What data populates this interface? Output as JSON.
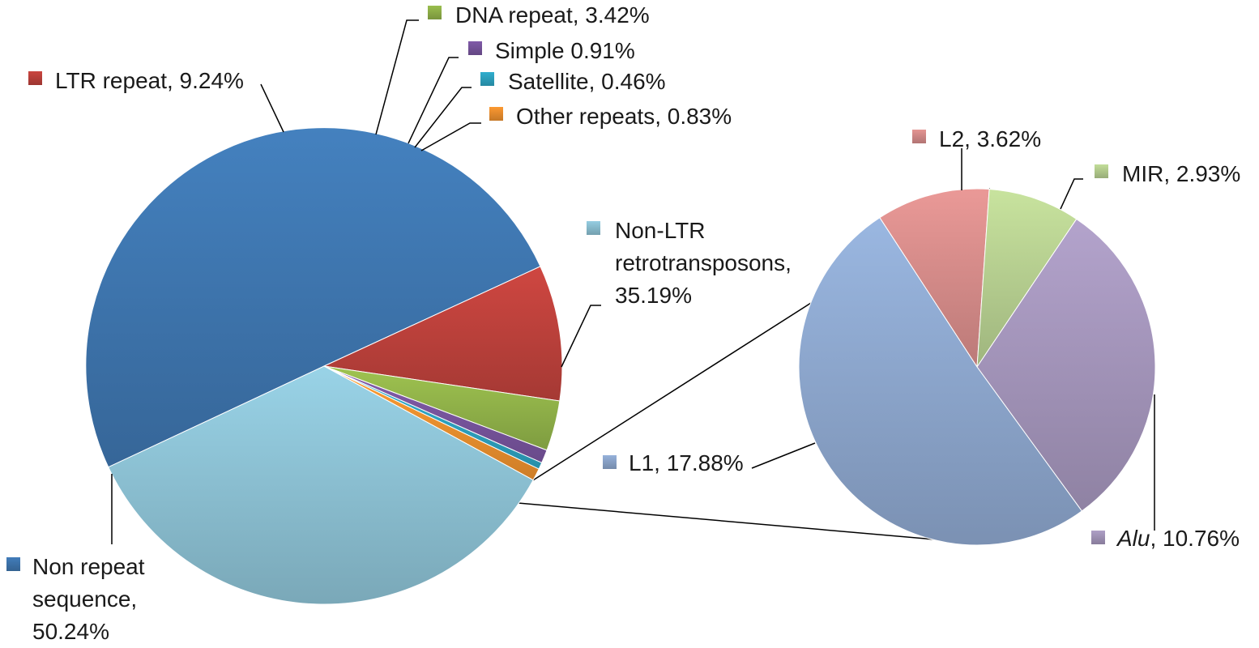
{
  "chart_data": [
    {
      "type": "pie",
      "title": "",
      "slices": [
        {
          "name": "Non repeat sequence",
          "value": 50.24,
          "label_lines": [
            "Non repeat",
            "sequence,",
            "50.24%"
          ],
          "color": "#3f77b1"
        },
        {
          "name": "LTR repeat",
          "value": 9.24,
          "label_lines": [
            "LTR repeat, 9.24%"
          ],
          "color": "#c0423c"
        },
        {
          "name": "DNA repeat",
          "value": 3.42,
          "label_lines": [
            "DNA repeat, 3.42%"
          ],
          "color": "#93b54a"
        },
        {
          "name": "Simple",
          "value": 0.91,
          "label_lines": [
            "Simple 0.91%"
          ],
          "color": "#7a56a0"
        },
        {
          "name": "Satellite",
          "value": 0.46,
          "label_lines": [
            "Satellite, 0.46%"
          ],
          "color": "#2ea6c4"
        },
        {
          "name": "Other repeats",
          "value": 0.83,
          "label_lines": [
            "Other repeats, 0.83%"
          ],
          "color": "#f0922f"
        },
        {
          "name": "Non-LTR retrotransposons",
          "value": 35.19,
          "label_lines": [
            "Non-LTR",
            "retrotransposons,",
            "35.19%"
          ],
          "color": "#8ec3d6"
        }
      ]
    },
    {
      "type": "pie",
      "title": "",
      "slices": [
        {
          "name": "L2",
          "value": 3.62,
          "label_lines": [
            "L2, 3.62%"
          ],
          "color": "#d98e8c"
        },
        {
          "name": "MIR",
          "value": 2.93,
          "label_lines": [
            "MIR, 2.93%"
          ],
          "color": "#b9d292"
        },
        {
          "name": "Alu",
          "value": 10.76,
          "label_lines": [
            "Alu, 10.76%"
          ],
          "italic_prefix": "Alu",
          "color": "#a697bd"
        },
        {
          "name": "L1",
          "value": 17.88,
          "label_lines": [
            "L1, 17.88%"
          ],
          "color": "#8fa9d0"
        }
      ]
    }
  ]
}
